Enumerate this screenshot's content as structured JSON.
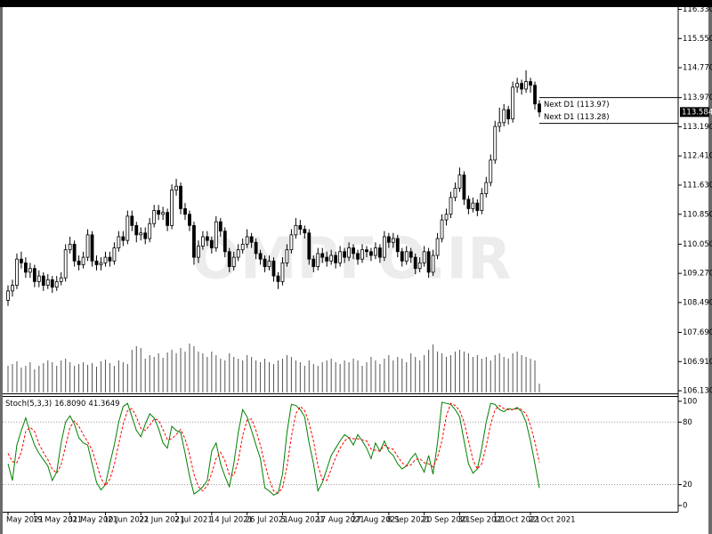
{
  "chart_data": [
    {
      "type": "candlestick",
      "watermark": "OMPFO.IR",
      "categories": [
        "May 2021",
        null,
        null,
        null,
        null,
        null,
        "19 May 2021",
        null,
        null,
        null,
        null,
        null,
        null,
        null,
        "31 May 2021",
        null,
        null,
        null,
        null,
        null,
        null,
        null,
        "10 Jun 2021",
        null,
        null,
        null,
        null,
        null,
        null,
        null,
        "22 Jun 2021",
        null,
        null,
        null,
        null,
        null,
        null,
        null,
        "2 Jul 2021",
        null,
        null,
        null,
        null,
        null,
        null,
        null,
        "14 Jul 2021",
        null,
        null,
        null,
        null,
        null,
        null,
        null,
        "26 Jul 2021",
        null,
        null,
        null,
        null,
        null,
        null,
        null,
        "5 Aug 2021",
        null,
        null,
        null,
        null,
        null,
        null,
        null,
        "17 Aug 2021",
        null,
        null,
        null,
        null,
        null,
        null,
        null,
        "27 Aug 2021",
        null,
        null,
        null,
        null,
        null,
        null,
        null,
        "8 Sep 2021",
        null,
        null,
        null,
        null,
        null,
        null,
        null,
        "20 Sep 2021",
        null,
        null,
        null,
        null,
        null,
        null,
        null,
        "30 Sep 2021",
        null,
        null,
        null,
        null,
        null,
        null,
        null,
        "12 Oct 2021",
        null,
        null,
        null,
        null,
        null,
        null,
        null,
        "22 Oct 2021",
        null,
        null
      ],
      "open": [
        108.55,
        108.8,
        108.95,
        109.65,
        109.55,
        109.3,
        109.4,
        109.05,
        109.2,
        108.95,
        109.1,
        108.9,
        109.05,
        109.15,
        109.9,
        110.05,
        109.6,
        109.5,
        109.7,
        110.3,
        109.6,
        109.5,
        109.55,
        109.7,
        109.6,
        109.95,
        110.25,
        110.15,
        110.8,
        110.55,
        110.3,
        110.35,
        110.2,
        110.6,
        110.95,
        110.85,
        110.9,
        110.55,
        111.5,
        111.6,
        111.0,
        110.85,
        110.55,
        109.7,
        110.0,
        110.25,
        110.15,
        109.95,
        110.65,
        110.4,
        109.85,
        109.45,
        109.7,
        109.9,
        110.05,
        110.25,
        110.1,
        109.8,
        109.65,
        109.45,
        109.6,
        109.2,
        109.05,
        109.55,
        109.9,
        110.3,
        110.55,
        110.45,
        110.35,
        109.65,
        109.45,
        109.8,
        109.7,
        109.6,
        109.75,
        109.55,
        109.85,
        109.7,
        109.95,
        109.8,
        109.65,
        109.9,
        109.85,
        109.75,
        109.95,
        109.7,
        110.25,
        110.1,
        110.2,
        109.85,
        109.6,
        109.85,
        109.7,
        109.4,
        109.55,
        109.85,
        109.3,
        109.75,
        110.2,
        110.7,
        110.85,
        111.3,
        111.55,
        111.9,
        111.25,
        111.0,
        111.15,
        110.95,
        111.4,
        111.7,
        112.3,
        113.2,
        113.3,
        113.65,
        113.4,
        114.25,
        114.35,
        114.2,
        114.4,
        114.3,
        113.8
      ],
      "high": [
        108.95,
        109.1,
        109.8,
        109.85,
        109.7,
        109.55,
        109.5,
        109.35,
        109.3,
        109.25,
        109.2,
        109.2,
        109.3,
        110.05,
        110.25,
        110.15,
        109.75,
        109.85,
        110.45,
        110.4,
        109.75,
        109.7,
        109.85,
        109.85,
        110.1,
        110.4,
        110.4,
        110.95,
        110.95,
        110.65,
        110.5,
        110.5,
        110.75,
        111.1,
        111.1,
        111.05,
        111.0,
        111.65,
        111.8,
        111.7,
        111.15,
        110.95,
        110.65,
        110.15,
        110.4,
        110.4,
        110.25,
        110.8,
        110.75,
        110.5,
        109.95,
        109.85,
        110.05,
        110.2,
        110.45,
        110.35,
        110.2,
        109.9,
        109.75,
        109.75,
        109.7,
        109.3,
        109.7,
        110.05,
        110.45,
        110.75,
        110.7,
        110.55,
        110.45,
        109.75,
        109.95,
        109.95,
        109.85,
        109.9,
        109.85,
        110.0,
        109.95,
        110.1,
        110.05,
        109.9,
        110.05,
        110.0,
        109.95,
        110.1,
        110.05,
        110.4,
        110.35,
        110.35,
        110.3,
        109.95,
        110.0,
        109.95,
        109.8,
        109.7,
        110.0,
        109.95,
        109.9,
        110.35,
        110.85,
        111.0,
        111.45,
        111.7,
        112.1,
        112.0,
        111.35,
        111.3,
        111.25,
        111.55,
        111.85,
        112.45,
        113.35,
        113.7,
        113.8,
        113.75,
        114.4,
        114.5,
        114.45,
        114.7,
        114.5,
        114.4,
        113.9
      ],
      "low": [
        108.4,
        108.65,
        108.85,
        109.4,
        109.15,
        109.15,
        108.9,
        108.9,
        108.8,
        108.85,
        108.75,
        108.8,
        108.95,
        109.05,
        109.8,
        109.45,
        109.35,
        109.4,
        109.6,
        109.45,
        109.35,
        109.35,
        109.45,
        109.45,
        109.5,
        109.85,
        110.0,
        110.05,
        110.4,
        110.1,
        110.15,
        110.05,
        110.1,
        110.5,
        110.7,
        110.7,
        110.4,
        110.45,
        111.35,
        110.85,
        110.7,
        110.4,
        109.5,
        109.55,
        109.9,
        110.0,
        109.8,
        109.85,
        110.25,
        109.7,
        109.3,
        109.35,
        109.6,
        109.8,
        109.95,
        109.95,
        109.65,
        109.5,
        109.3,
        109.35,
        109.05,
        108.85,
        108.95,
        109.45,
        109.8,
        110.2,
        110.3,
        110.2,
        109.5,
        109.3,
        109.35,
        109.55,
        109.45,
        109.5,
        109.4,
        109.45,
        109.55,
        109.6,
        109.65,
        109.5,
        109.55,
        109.7,
        109.6,
        109.65,
        109.55,
        109.6,
        109.95,
        109.95,
        109.7,
        109.45,
        109.5,
        109.55,
        109.25,
        109.3,
        109.45,
        109.15,
        109.2,
        109.65,
        110.1,
        110.55,
        110.75,
        111.2,
        111.45,
        111.1,
        110.85,
        110.9,
        110.8,
        110.85,
        111.3,
        111.6,
        112.2,
        113.05,
        113.2,
        113.25,
        113.3,
        114.1,
        114.05,
        114.1,
        114.1,
        113.65,
        113.45
      ],
      "close": [
        108.8,
        108.95,
        109.65,
        109.55,
        109.3,
        109.4,
        109.05,
        109.2,
        108.95,
        109.1,
        108.9,
        109.05,
        109.15,
        109.9,
        110.05,
        109.6,
        109.5,
        109.7,
        110.3,
        109.6,
        109.5,
        109.55,
        109.7,
        109.6,
        109.95,
        110.25,
        110.15,
        110.8,
        110.55,
        110.3,
        110.35,
        110.2,
        110.6,
        110.95,
        110.85,
        110.9,
        110.55,
        111.5,
        111.6,
        111.0,
        110.85,
        110.55,
        109.7,
        110.0,
        110.25,
        110.15,
        109.95,
        110.65,
        110.4,
        109.85,
        109.45,
        109.7,
        109.9,
        110.05,
        110.25,
        110.1,
        109.8,
        109.65,
        109.45,
        109.6,
        109.2,
        109.05,
        109.55,
        109.9,
        110.3,
        110.55,
        110.45,
        110.35,
        109.65,
        109.45,
        109.8,
        109.7,
        109.6,
        109.75,
        109.55,
        109.85,
        109.7,
        109.95,
        109.8,
        109.65,
        109.9,
        109.85,
        109.75,
        109.95,
        109.7,
        110.25,
        110.1,
        110.2,
        109.85,
        109.6,
        109.85,
        109.7,
        109.4,
        109.55,
        109.85,
        109.3,
        109.75,
        110.2,
        110.7,
        110.85,
        111.3,
        111.55,
        111.9,
        111.25,
        111.0,
        111.15,
        110.95,
        111.4,
        111.7,
        112.3,
        113.2,
        113.3,
        113.65,
        113.4,
        114.25,
        114.35,
        114.2,
        114.4,
        114.3,
        113.8,
        113.584
      ],
      "volume": [
        30,
        32,
        35,
        28,
        30,
        34,
        26,
        30,
        33,
        36,
        34,
        30,
        36,
        38,
        34,
        30,
        32,
        34,
        31,
        33,
        29,
        35,
        37,
        33,
        30,
        36,
        34,
        32,
        48,
        52,
        50,
        38,
        42,
        40,
        44,
        39,
        45,
        48,
        44,
        50,
        46,
        55,
        52,
        46,
        44,
        40,
        46,
        42,
        38,
        36,
        44,
        40,
        38,
        36,
        42,
        40,
        36,
        34,
        38,
        34,
        32,
        36,
        38,
        42,
        40,
        36,
        34,
        30,
        36,
        32,
        30,
        34,
        36,
        38,
        34,
        32,
        36,
        34,
        38,
        36,
        30,
        34,
        40,
        36,
        32,
        38,
        42,
        36,
        40,
        38,
        34,
        44,
        40,
        36,
        42,
        48,
        54,
        46,
        44,
        40,
        42,
        46,
        48,
        46,
        44,
        40,
        42,
        38,
        40,
        36,
        42,
        44,
        40,
        38,
        44,
        46,
        42,
        40,
        38,
        36,
        10
      ],
      "up_color": "#ffffff",
      "down_color": "#000000",
      "wick_color": "#000000",
      "volume_color": "#555555",
      "ylim": [
        106.06,
        116.39
      ],
      "yticks": [
        {
          "value": 106.13,
          "label": "106.130"
        },
        {
          "value": 106.91,
          "label": "106.910"
        },
        {
          "value": 107.69,
          "label": "107.690"
        },
        {
          "value": 108.49,
          "label": "108.490"
        },
        {
          "value": 109.27,
          "label": "109.270"
        },
        {
          "value": 110.05,
          "label": "110.050"
        },
        {
          "value": 110.85,
          "label": "110.850"
        },
        {
          "value": 111.63,
          "label": "111.630"
        },
        {
          "value": 112.41,
          "label": "112.410"
        },
        {
          "value": 113.19,
          "label": "113.190"
        },
        {
          "value": 113.97,
          "label": "113.970"
        },
        {
          "value": 114.77,
          "label": "114.770"
        },
        {
          "value": 115.55,
          "label": "115.550"
        },
        {
          "value": 116.33,
          "label": "116.330"
        }
      ],
      "lines": [
        {
          "value": 113.97,
          "label": "Next D1 (113.97)"
        },
        {
          "value": 113.28,
          "label": "Next D1 (113.28)"
        }
      ]
    },
    {
      "type": "line",
      "title": "Stoch(5,3,3)",
      "readout": [
        {
          "value": 16.809,
          "label": "16.8090"
        },
        {
          "value": 41.3649,
          "label": "41.3649"
        }
      ],
      "series": [
        {
          "color": "#008000",
          "dashed": false,
          "values": [
            40,
            24,
            58,
            72,
            84,
            70,
            58,
            50,
            44,
            38,
            24,
            32,
            60,
            80,
            86,
            78,
            65,
            60,
            58,
            40,
            22,
            15,
            20,
            40,
            58,
            80,
            95,
            98,
            85,
            72,
            66,
            78,
            88,
            84,
            74,
            60,
            55,
            76,
            72,
            70,
            50,
            28,
            11,
            14,
            18,
            24,
            52,
            60,
            40,
            28,
            18,
            40,
            70,
            92,
            85,
            72,
            58,
            45,
            17,
            14,
            10,
            12,
            30,
            70,
            97,
            96,
            92,
            85,
            60,
            40,
            14,
            22,
            35,
            48,
            55,
            62,
            68,
            65,
            58,
            68,
            62,
            55,
            45,
            60,
            52,
            62,
            52,
            48,
            40,
            35,
            38,
            45,
            50,
            40,
            32,
            48,
            30,
            60,
            99,
            98,
            97,
            92,
            85,
            62,
            40,
            31,
            35,
            55,
            80,
            98,
            97,
            92,
            90,
            93,
            92,
            94,
            90,
            80,
            62,
            40,
            16.809
          ]
        },
        {
          "color": "#ff0000",
          "dashed": true,
          "values": [
            50,
            42,
            41,
            51,
            71,
            75,
            71,
            59,
            51,
            44,
            35,
            31,
            39,
            57,
            75,
            81,
            76,
            68,
            61,
            53,
            40,
            26,
            19,
            25,
            39,
            59,
            78,
            91,
            93,
            85,
            74,
            72,
            77,
            83,
            82,
            73,
            63,
            64,
            68,
            73,
            64,
            49,
            30,
            18,
            14,
            19,
            31,
            45,
            51,
            43,
            29,
            29,
            43,
            67,
            82,
            83,
            72,
            58,
            40,
            25,
            14,
            12,
            17,
            37,
            66,
            88,
            95,
            91,
            79,
            62,
            38,
            25,
            24,
            35,
            46,
            55,
            62,
            65,
            64,
            64,
            63,
            62,
            54,
            53,
            52,
            58,
            55,
            54,
            47,
            41,
            38,
            39,
            44,
            45,
            41,
            40,
            37,
            46,
            62,
            86,
            98,
            96,
            91,
            80,
            62,
            44,
            35,
            40,
            57,
            78,
            92,
            96,
            93,
            92,
            92,
            93,
            92,
            88,
            77,
            61,
            41.3649
          ]
        }
      ],
      "ylim": [
        -6,
        105
      ],
      "yticks": [
        0,
        20,
        80,
        100
      ],
      "levels": [
        20,
        80
      ],
      "level_color": "#999999"
    }
  ]
}
